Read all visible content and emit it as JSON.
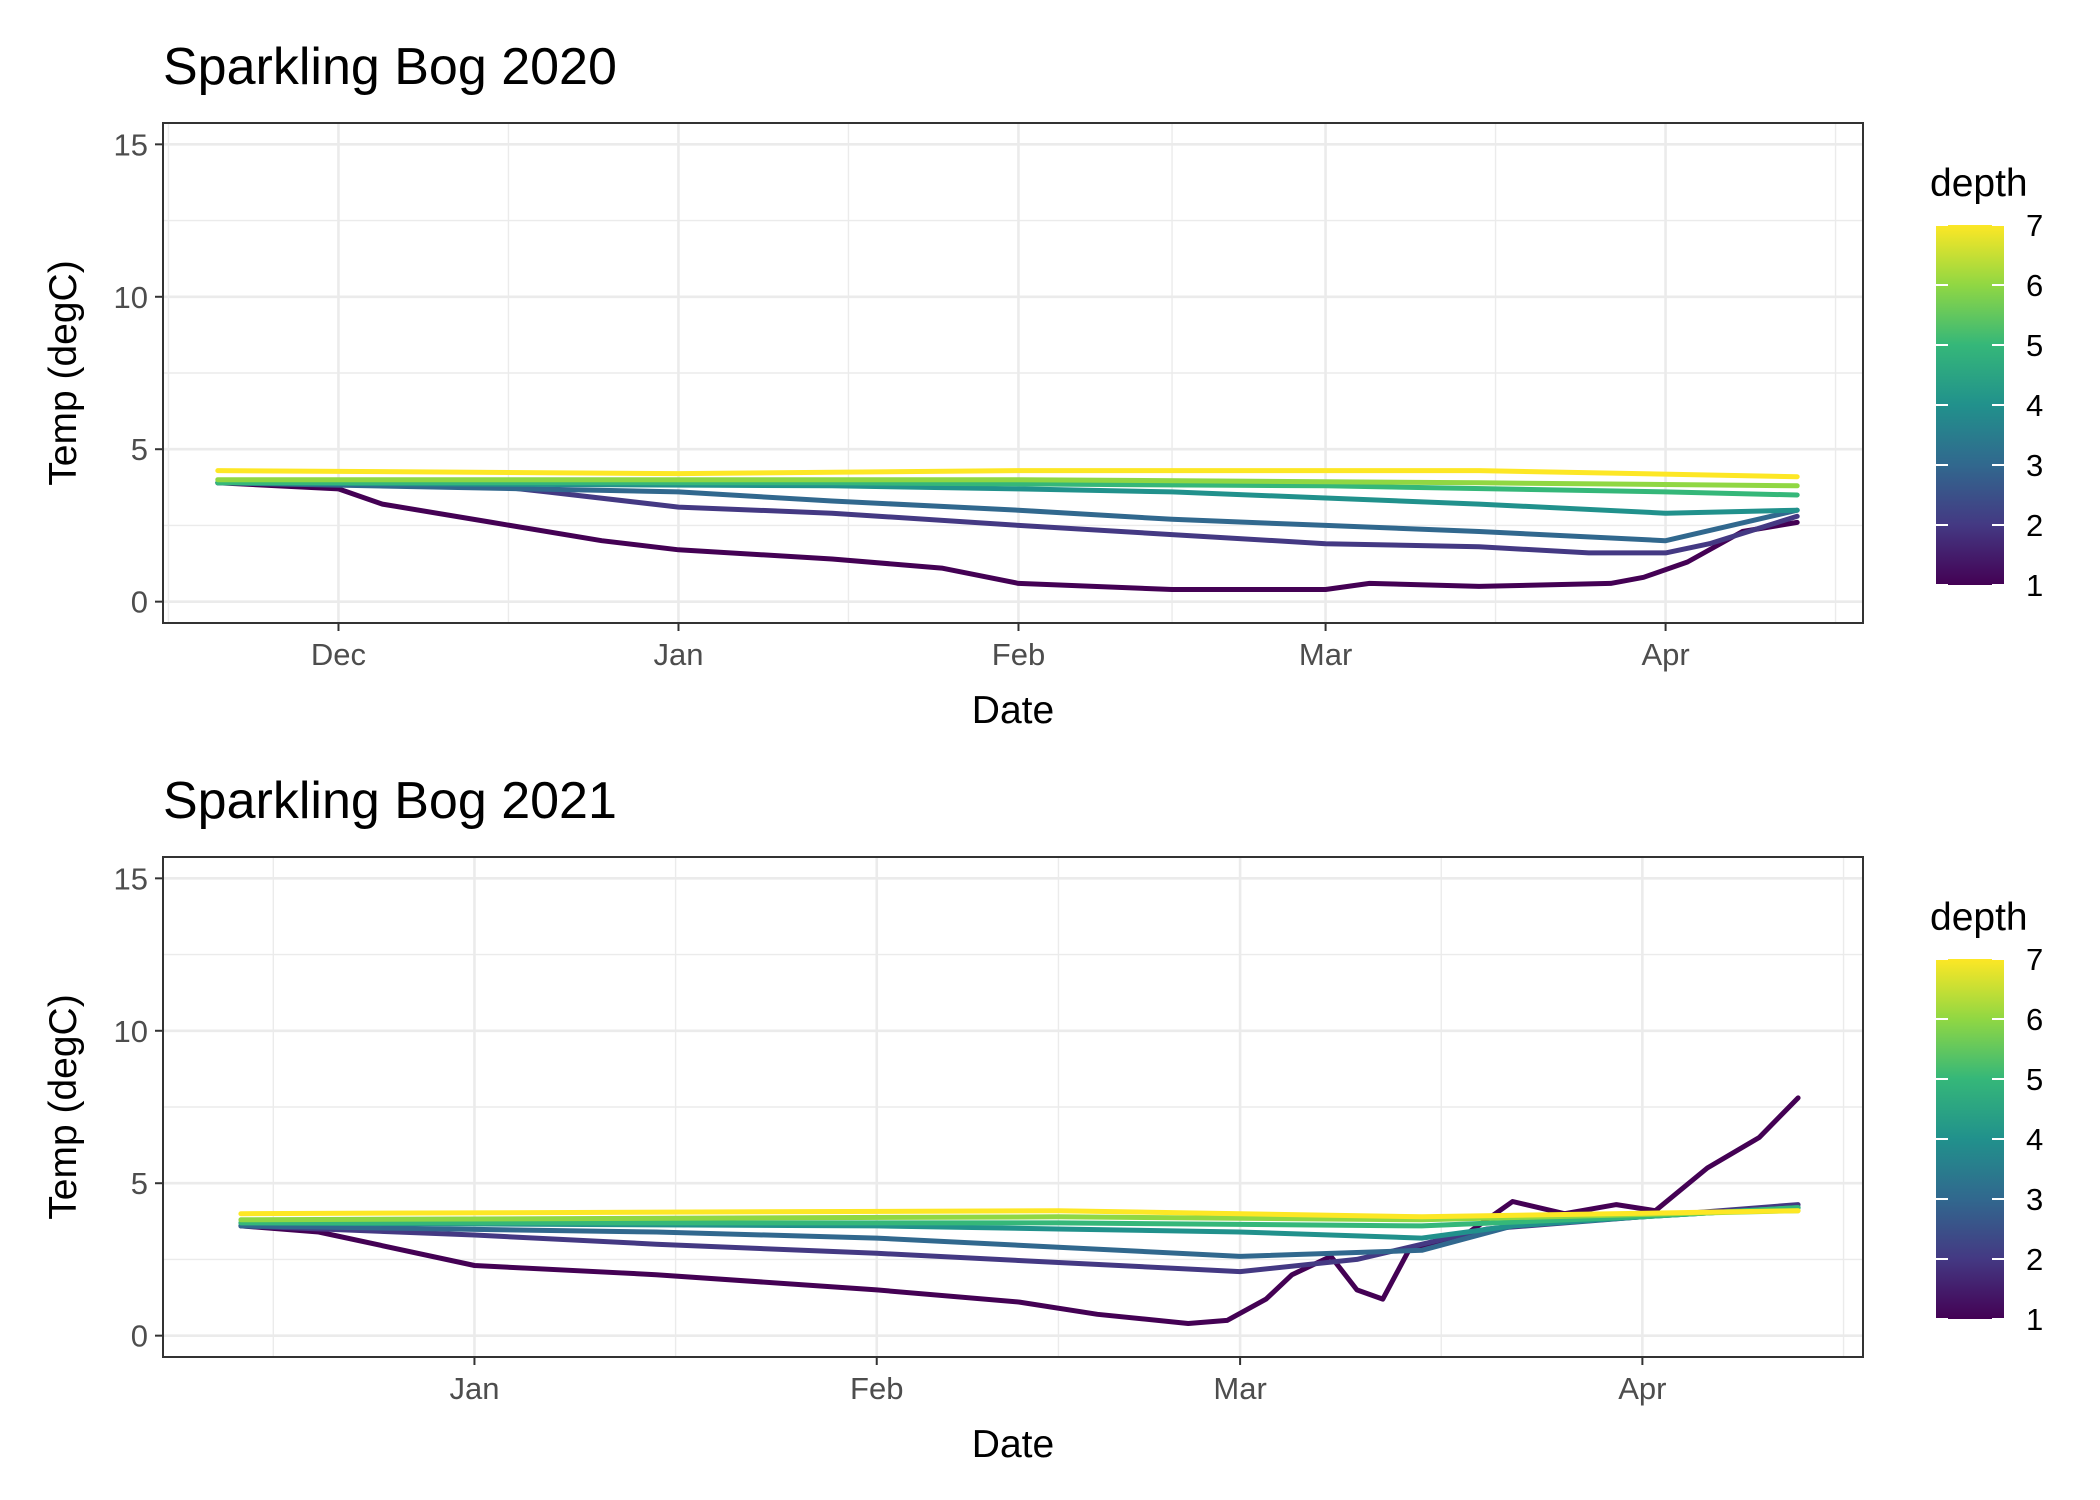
{
  "chart_data": [
    {
      "type": "line",
      "title": "Sparkling Bog 2020",
      "xlabel": "Date",
      "ylabel": "Temp (degC)",
      "x_type": "date",
      "xlim": [
        "2020-11-15",
        "2021-04-19"
      ],
      "ylim": [
        -0.7,
        15.7
      ],
      "y_ticks": [
        0,
        5,
        10,
        15
      ],
      "x_ticks": [
        {
          "date": "2020-12-01",
          "label": "Dec"
        },
        {
          "date": "2021-01-01",
          "label": "Jan"
        },
        {
          "date": "2021-02-01",
          "label": "Feb"
        },
        {
          "date": "2021-03-01",
          "label": "Mar"
        },
        {
          "date": "2021-04-01",
          "label": "Apr"
        }
      ],
      "grid": true,
      "legend": {
        "title": "depth",
        "position": "right",
        "type": "colorbar",
        "range": [
          1,
          7
        ],
        "labels": [
          "7",
          "6",
          "5",
          "4",
          "3",
          "2",
          "1"
        ]
      },
      "series": [
        {
          "depth": 1,
          "color": "#440154",
          "points": [
            [
              "2020-11-20",
              3.9
            ],
            [
              "2020-12-01",
              3.7
            ],
            [
              "2020-12-05",
              3.2
            ],
            [
              "2020-12-15",
              2.6
            ],
            [
              "2020-12-25",
              2.0
            ],
            [
              "2021-01-01",
              1.7
            ],
            [
              "2021-01-15",
              1.4
            ],
            [
              "2021-01-25",
              1.1
            ],
            [
              "2021-02-01",
              0.6
            ],
            [
              "2021-02-15",
              0.4
            ],
            [
              "2021-03-01",
              0.4
            ],
            [
              "2021-03-05",
              0.6
            ],
            [
              "2021-03-15",
              0.5
            ],
            [
              "2021-03-27",
              0.6
            ],
            [
              "2021-03-30",
              0.8
            ],
            [
              "2021-04-03",
              1.3
            ],
            [
              "2021-04-08",
              2.3
            ],
            [
              "2021-04-13",
              2.6
            ]
          ]
        },
        {
          "depth": 2,
          "color": "#443983",
          "points": [
            [
              "2020-11-20",
              3.9
            ],
            [
              "2020-12-15",
              3.8
            ],
            [
              "2020-12-20",
              3.6
            ],
            [
              "2021-01-01",
              3.1
            ],
            [
              "2021-01-15",
              2.9
            ],
            [
              "2021-02-01",
              2.5
            ],
            [
              "2021-02-15",
              2.2
            ],
            [
              "2021-03-01",
              1.9
            ],
            [
              "2021-03-15",
              1.8
            ],
            [
              "2021-03-25",
              1.6
            ],
            [
              "2021-04-01",
              1.6
            ],
            [
              "2021-04-05",
              1.9
            ],
            [
              "2021-04-13",
              2.8
            ]
          ]
        },
        {
          "depth": 3,
          "color": "#31688e",
          "points": [
            [
              "2020-11-20",
              3.9
            ],
            [
              "2021-01-01",
              3.6
            ],
            [
              "2021-01-15",
              3.3
            ],
            [
              "2021-02-01",
              3.0
            ],
            [
              "2021-02-15",
              2.7
            ],
            [
              "2021-03-01",
              2.5
            ],
            [
              "2021-03-15",
              2.3
            ],
            [
              "2021-04-01",
              2.0
            ],
            [
              "2021-04-13",
              3.0
            ]
          ]
        },
        {
          "depth": 4,
          "color": "#21918c",
          "points": [
            [
              "2020-11-20",
              3.9
            ],
            [
              "2021-01-15",
              3.8
            ],
            [
              "2021-02-01",
              3.7
            ],
            [
              "2021-02-15",
              3.6
            ],
            [
              "2021-03-01",
              3.4
            ],
            [
              "2021-03-15",
              3.2
            ],
            [
              "2021-04-01",
              2.9
            ],
            [
              "2021-04-13",
              3.0
            ]
          ]
        },
        {
          "depth": 5,
          "color": "#35b779",
          "points": [
            [
              "2020-11-20",
              3.9
            ],
            [
              "2021-01-15",
              3.9
            ],
            [
              "2021-03-01",
              3.8
            ],
            [
              "2021-04-01",
              3.6
            ],
            [
              "2021-04-13",
              3.5
            ]
          ]
        },
        {
          "depth": 6,
          "color": "#90d743",
          "points": [
            [
              "2020-11-20",
              4.0
            ],
            [
              "2021-02-01",
              4.0
            ],
            [
              "2021-03-15",
              3.9
            ],
            [
              "2021-04-13",
              3.8
            ]
          ]
        },
        {
          "depth": 7,
          "color": "#fde725",
          "points": [
            [
              "2020-11-20",
              4.3
            ],
            [
              "2021-01-01",
              4.2
            ],
            [
              "2021-02-01",
              4.3
            ],
            [
              "2021-03-15",
              4.3
            ],
            [
              "2021-04-13",
              4.1
            ]
          ]
        }
      ]
    },
    {
      "type": "line",
      "title": "Sparkling Bog 2021",
      "xlabel": "Date",
      "ylabel": "Temp (degC)",
      "x_type": "date",
      "xlim": [
        "2021-12-08",
        "2022-04-18"
      ],
      "ylim": [
        -0.7,
        15.7
      ],
      "y_ticks": [
        0,
        5,
        10,
        15
      ],
      "x_ticks": [
        {
          "date": "2022-01-01",
          "label": "Jan"
        },
        {
          "date": "2022-02-01",
          "label": "Feb"
        },
        {
          "date": "2022-03-01",
          "label": "Mar"
        },
        {
          "date": "2022-04-01",
          "label": "Apr"
        }
      ],
      "grid": true,
      "legend": {
        "title": "depth",
        "position": "right",
        "type": "colorbar",
        "range": [
          1,
          7
        ],
        "labels": [
          "7",
          "6",
          "5",
          "4",
          "3",
          "2",
          "1"
        ]
      },
      "series": [
        {
          "depth": 1,
          "color": "#440154",
          "points": [
            [
              "2021-12-14",
              3.6
            ],
            [
              "2021-12-20",
              3.4
            ],
            [
              "2022-01-01",
              2.3
            ],
            [
              "2022-01-15",
              2.0
            ],
            [
              "2022-02-01",
              1.5
            ],
            [
              "2022-02-12",
              1.1
            ],
            [
              "2022-02-18",
              0.7
            ],
            [
              "2022-02-25",
              0.4
            ],
            [
              "2022-02-28",
              0.5
            ],
            [
              "2022-03-03",
              1.2
            ],
            [
              "2022-03-05",
              2.0
            ],
            [
              "2022-03-08",
              2.6
            ],
            [
              "2022-03-10",
              1.5
            ],
            [
              "2022-03-12",
              1.2
            ],
            [
              "2022-03-14",
              2.8
            ],
            [
              "2022-03-18",
              3.2
            ],
            [
              "2022-03-20",
              3.8
            ],
            [
              "2022-03-22",
              4.4
            ],
            [
              "2022-03-26",
              4.0
            ],
            [
              "2022-03-30",
              4.3
            ],
            [
              "2022-04-02",
              4.1
            ],
            [
              "2022-04-06",
              5.5
            ],
            [
              "2022-04-10",
              6.5
            ],
            [
              "2022-04-13",
              7.8
            ]
          ]
        },
        {
          "depth": 2,
          "color": "#443983",
          "points": [
            [
              "2021-12-14",
              3.6
            ],
            [
              "2022-01-01",
              3.3
            ],
            [
              "2022-01-15",
              3.0
            ],
            [
              "2022-02-01",
              2.7
            ],
            [
              "2022-02-15",
              2.4
            ],
            [
              "2022-03-01",
              2.1
            ],
            [
              "2022-03-10",
              2.5
            ],
            [
              "2022-03-20",
              3.5
            ],
            [
              "2022-04-01",
              3.9
            ],
            [
              "2022-04-13",
              4.3
            ]
          ]
        },
        {
          "depth": 3,
          "color": "#31688e",
          "points": [
            [
              "2021-12-14",
              3.6
            ],
            [
              "2022-01-15",
              3.4
            ],
            [
              "2022-02-01",
              3.2
            ],
            [
              "2022-02-15",
              2.9
            ],
            [
              "2022-03-01",
              2.6
            ],
            [
              "2022-03-15",
              2.8
            ],
            [
              "2022-03-22",
              3.6
            ],
            [
              "2022-04-01",
              3.9
            ],
            [
              "2022-04-13",
              4.2
            ]
          ]
        },
        {
          "depth": 4,
          "color": "#21918c",
          "points": [
            [
              "2021-12-14",
              3.7
            ],
            [
              "2022-02-01",
              3.6
            ],
            [
              "2022-02-15",
              3.5
            ],
            [
              "2022-03-01",
              3.4
            ],
            [
              "2022-03-15",
              3.2
            ],
            [
              "2022-03-22",
              3.6
            ],
            [
              "2022-04-01",
              3.9
            ],
            [
              "2022-04-13",
              4.2
            ]
          ]
        },
        {
          "depth": 5,
          "color": "#35b779",
          "points": [
            [
              "2021-12-14",
              3.7
            ],
            [
              "2022-02-15",
              3.7
            ],
            [
              "2022-03-15",
              3.6
            ],
            [
              "2022-04-01",
              3.9
            ],
            [
              "2022-04-13",
              4.2
            ]
          ]
        },
        {
          "depth": 6,
          "color": "#90d743",
          "points": [
            [
              "2021-12-14",
              3.8
            ],
            [
              "2022-02-15",
              3.9
            ],
            [
              "2022-03-15",
              3.8
            ],
            [
              "2022-04-13",
              4.1
            ]
          ]
        },
        {
          "depth": 7,
          "color": "#fde725",
          "points": [
            [
              "2021-12-14",
              4.0
            ],
            [
              "2022-02-15",
              4.1
            ],
            [
              "2022-03-15",
              3.9
            ],
            [
              "2022-04-13",
              4.1
            ]
          ]
        }
      ]
    }
  ]
}
